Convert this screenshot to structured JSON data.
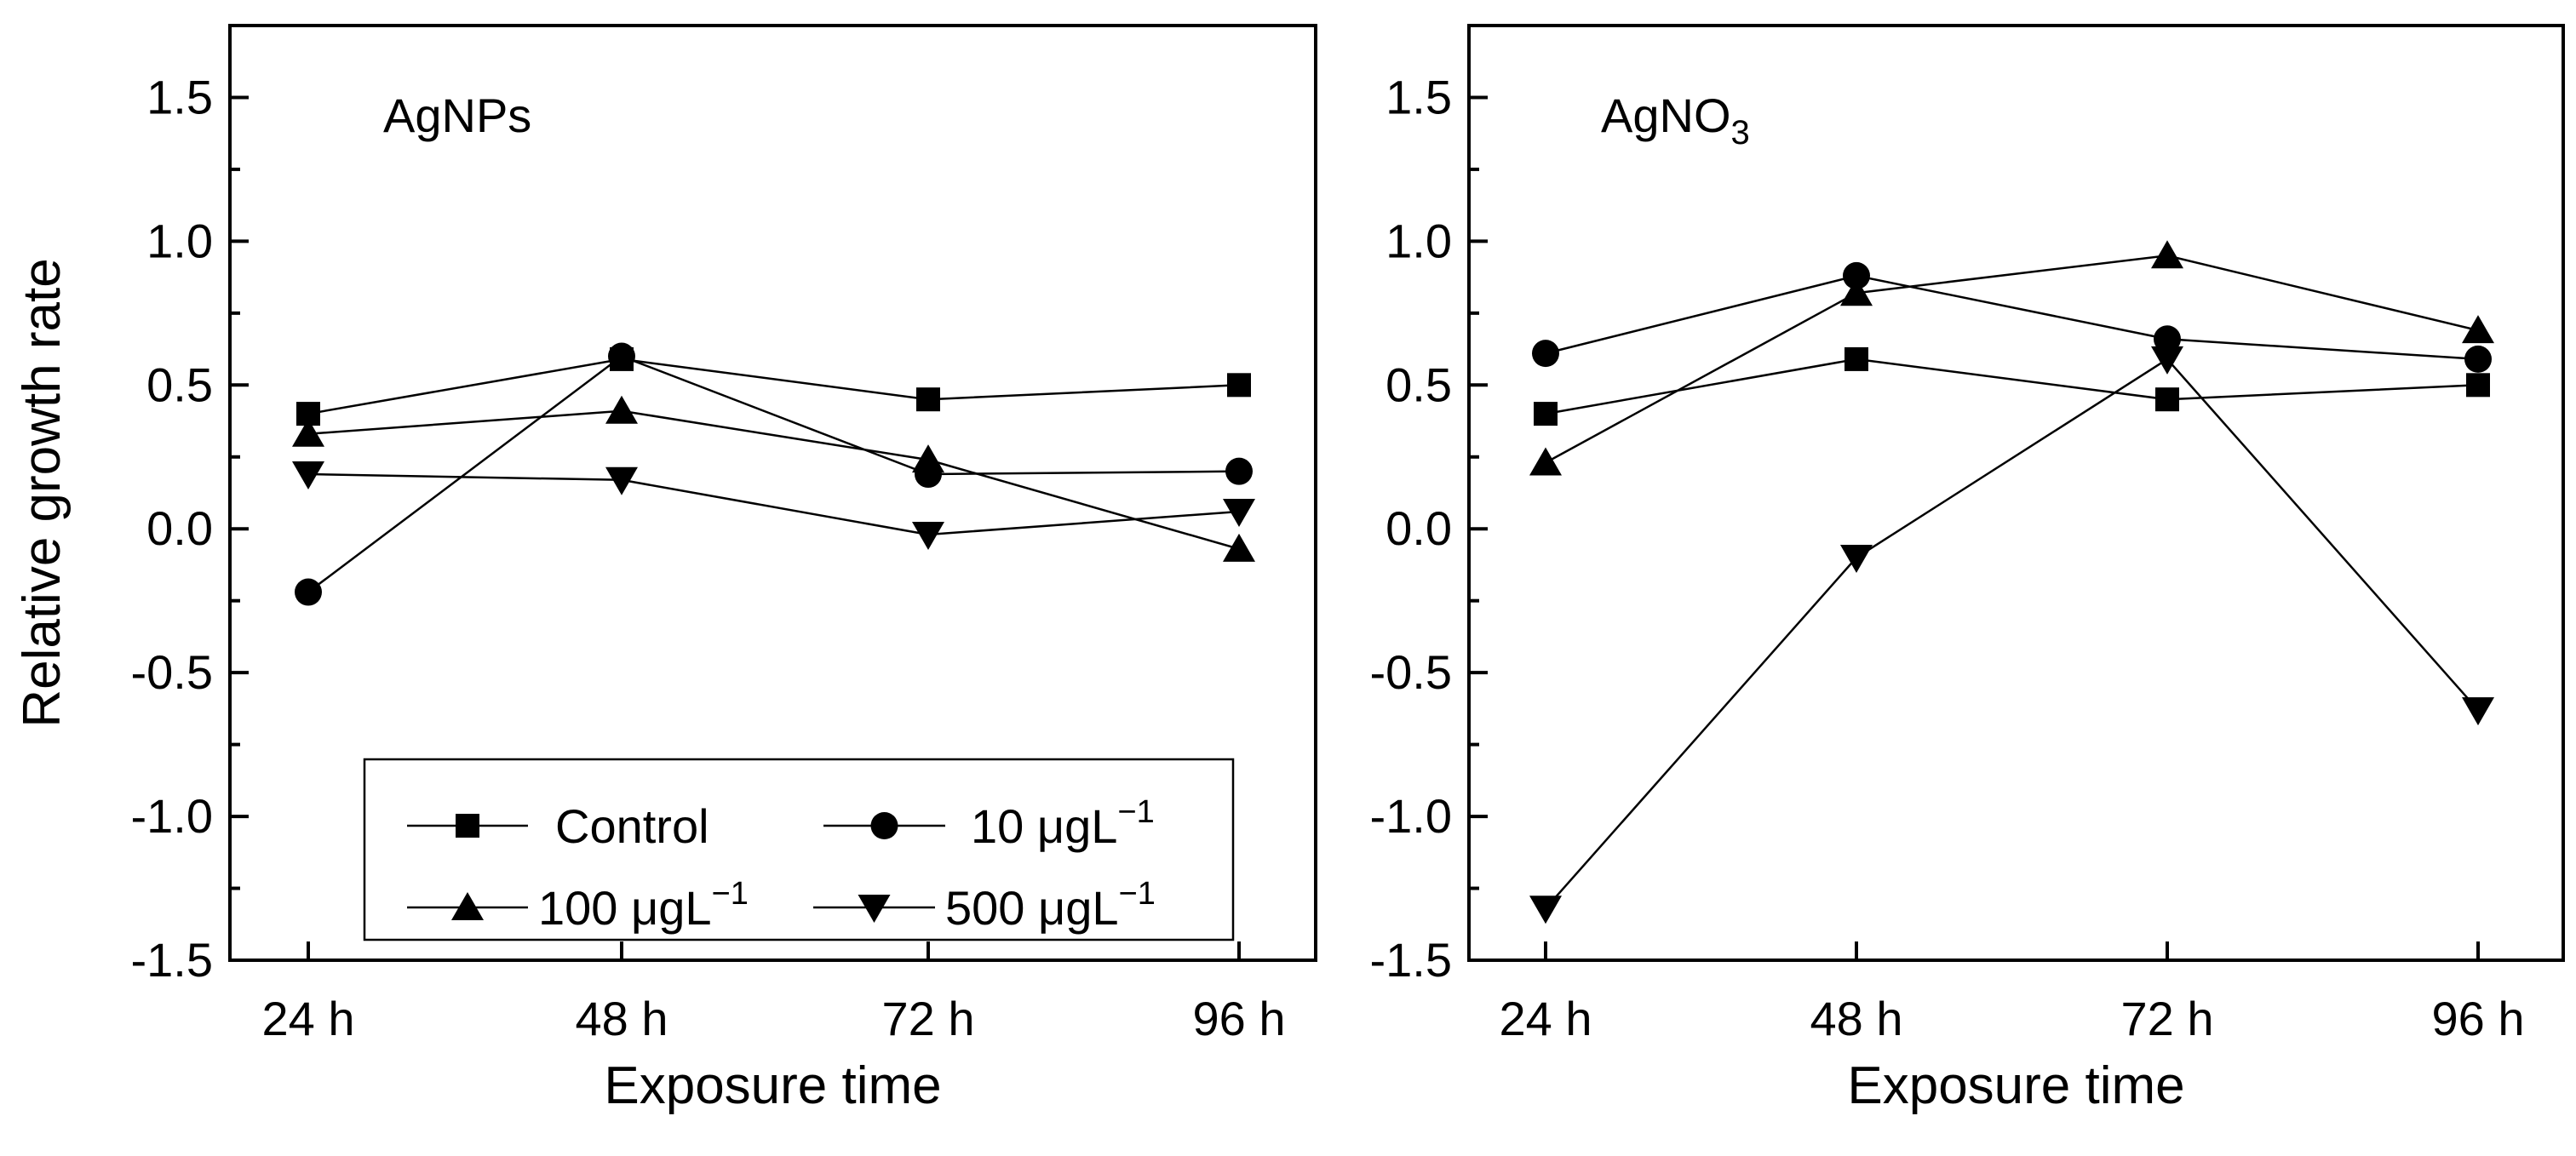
{
  "chart_data": [
    {
      "type": "line",
      "panel_label": "AgNPs",
      "panel_label_sub": "",
      "xlabel": "Exposure time",
      "ylabel": "Relative growth rate",
      "categories": [
        "24 h",
        "48 h",
        "72 h",
        "96 h"
      ],
      "ylim": [
        -1.5,
        1.75
      ],
      "yticks": [
        -1.5,
        -1.0,
        -0.5,
        0.0,
        0.5,
        1.0,
        1.5
      ],
      "ytick_labels": [
        "-1.5",
        "-1.0",
        "-0.5",
        "0.0",
        "0.5",
        "1.0",
        "1.5"
      ],
      "grid": false,
      "legend": "bottom-center",
      "series": [
        {
          "name": "Control",
          "marker": "square",
          "values": [
            0.4,
            0.59,
            0.45,
            0.5
          ]
        },
        {
          "name": "10 μgL⁻¹",
          "marker": "circle",
          "values": [
            -0.22,
            0.6,
            0.19,
            0.2
          ]
        },
        {
          "name": "100 μgL⁻¹",
          "marker": "triangle-up",
          "values": [
            0.33,
            0.41,
            0.24,
            -0.07
          ]
        },
        {
          "name": "500 μgL⁻¹",
          "marker": "triangle-down",
          "values": [
            0.19,
            0.17,
            -0.02,
            0.06
          ]
        }
      ]
    },
    {
      "type": "line",
      "panel_label": "AgNO",
      "panel_label_sub": "3",
      "xlabel": "Exposure time",
      "ylabel": "",
      "categories": [
        "24 h",
        "48 h",
        "72 h",
        "96 h"
      ],
      "ylim": [
        -1.5,
        1.75
      ],
      "yticks": [
        -1.5,
        -1.0,
        -0.5,
        0.0,
        0.5,
        1.0,
        1.5
      ],
      "ytick_labels": [
        "-1.5",
        "-1.0",
        "-0.5",
        "0.0",
        "0.5",
        "1.0",
        "1.5"
      ],
      "grid": false,
      "legend": "none",
      "series": [
        {
          "name": "Control",
          "marker": "square",
          "values": [
            0.4,
            0.59,
            0.45,
            0.5
          ]
        },
        {
          "name": "10 μgL⁻¹",
          "marker": "circle",
          "values": [
            0.61,
            0.88,
            0.66,
            0.59
          ]
        },
        {
          "name": "100 μgL⁻¹",
          "marker": "triangle-up",
          "values": [
            0.23,
            0.82,
            0.95,
            0.69
          ]
        },
        {
          "name": "500 μgL⁻¹",
          "marker": "triangle-down",
          "values": [
            -1.32,
            -0.1,
            0.59,
            -0.63
          ]
        }
      ]
    }
  ],
  "legend": {
    "entries": [
      {
        "label": "Control",
        "marker": "square"
      },
      {
        "label": "10 μgL",
        "sup": "−1",
        "marker": "circle"
      },
      {
        "label": "100 μgL",
        "sup": "−1",
        "marker": "triangle-up"
      },
      {
        "label": "500 μgL",
        "sup": "−1",
        "marker": "triangle-down"
      }
    ]
  }
}
